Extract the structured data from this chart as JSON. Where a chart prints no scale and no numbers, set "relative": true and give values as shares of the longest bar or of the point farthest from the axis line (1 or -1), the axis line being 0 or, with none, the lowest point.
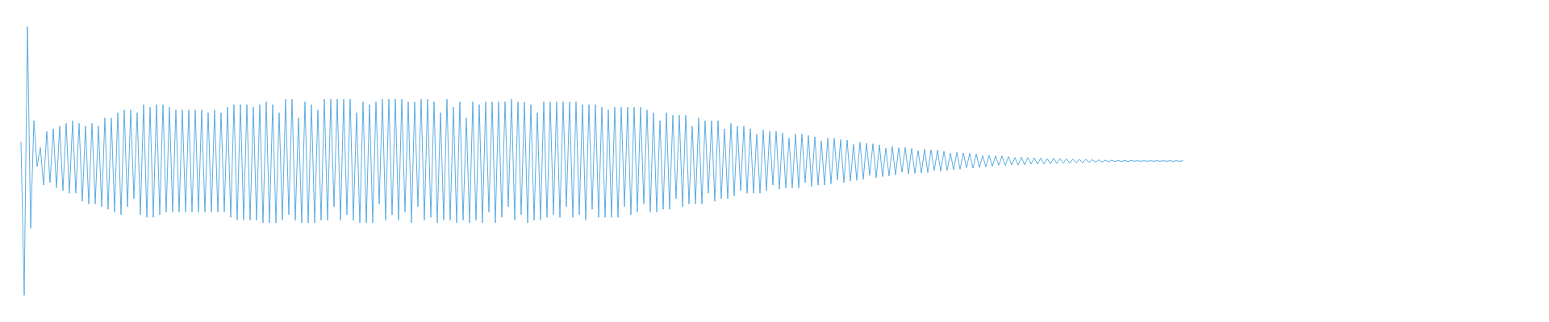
{
  "chart_data": {
    "type": "line",
    "relative": true,
    "color": "#5dade2",
    "marker": "none",
    "tick_labels": false,
    "categories": [
      null,
      null,
      null,
      null,
      null,
      null,
      null,
      null,
      null,
      null,
      null,
      null,
      null,
      null,
      null,
      null,
      null,
      null,
      null,
      null,
      null,
      null,
      null,
      null,
      null,
      null,
      null,
      null,
      null,
      null,
      null,
      null,
      null,
      null,
      null,
      null,
      null,
      null,
      null,
      null,
      null,
      null,
      null,
      null,
      null,
      null,
      null,
      null,
      null,
      null,
      null,
      null,
      null,
      null,
      null,
      null,
      null,
      null,
      null,
      null,
      null,
      null,
      null,
      null,
      null,
      null,
      null,
      null,
      null,
      null,
      null,
      null,
      null,
      null,
      null,
      null,
      null,
      null,
      null,
      null,
      null,
      null,
      null,
      null,
      null,
      null,
      null,
      null,
      null,
      null,
      null,
      null,
      null,
      null,
      null,
      null,
      null,
      null,
      null,
      null,
      null,
      null,
      null,
      null,
      null,
      null,
      null,
      null,
      null,
      null,
      null,
      null,
      null,
      null,
      null,
      null,
      null,
      null,
      null,
      null,
      null,
      null,
      null,
      null,
      null,
      null,
      null,
      null,
      null,
      null,
      null,
      null,
      null,
      null,
      null,
      null,
      null,
      null,
      null,
      null,
      null,
      null,
      null,
      null,
      null,
      null,
      null,
      null,
      null,
      null,
      null,
      null,
      null,
      null,
      null,
      null,
      null,
      null,
      null,
      null,
      null,
      null,
      null,
      null,
      null,
      null,
      null,
      null,
      null,
      null,
      null,
      null,
      null,
      null,
      null,
      null,
      null,
      null,
      null,
      null,
      null,
      null,
      null,
      null,
      null,
      null,
      null,
      null,
      null,
      null,
      null,
      null,
      null,
      null,
      null,
      null,
      null,
      null,
      null,
      null,
      null,
      null,
      null,
      null,
      null,
      null,
      null,
      null,
      null,
      null,
      null,
      null,
      null,
      null,
      null,
      null,
      null,
      null,
      null,
      null,
      null,
      null,
      null,
      null,
      null,
      null,
      null,
      null,
      null,
      null,
      null,
      null,
      null,
      null,
      null,
      null,
      null,
      null,
      null,
      null,
      null,
      null,
      null,
      null,
      null,
      null,
      null,
      null,
      null,
      null,
      null,
      null,
      null,
      null,
      null,
      null,
      null,
      null,
      null,
      null,
      null,
      null,
      null,
      null,
      null,
      null,
      null,
      null,
      null,
      null,
      null,
      null,
      null,
      null,
      null,
      null,
      null,
      null,
      null,
      null,
      null,
      null,
      null,
      null,
      null,
      null,
      null,
      null,
      null,
      null,
      null,
      null,
      null,
      null,
      null,
      null,
      null,
      null,
      null,
      null,
      null,
      null,
      null,
      null,
      null,
      null,
      null,
      null,
      null,
      null,
      null,
      null,
      null,
      null,
      null,
      null,
      null,
      null,
      null,
      null,
      null,
      null,
      null,
      null,
      null,
      null,
      null,
      null,
      null,
      null,
      null,
      null,
      null,
      null,
      null,
      null,
      null,
      null,
      null,
      null,
      null,
      null,
      null,
      null,
      null,
      null,
      null,
      null,
      null,
      null,
      null,
      null,
      null,
      null,
      null,
      null,
      null,
      null,
      null,
      null,
      null
    ],
    "values": [
      0.57,
      0.0,
      1.0,
      0.25,
      0.65,
      0.48,
      0.55,
      0.41,
      0.61,
      0.42,
      0.62,
      0.4,
      0.63,
      0.39,
      0.64,
      0.38,
      0.65,
      0.38,
      0.64,
      0.35,
      0.63,
      0.34,
      0.64,
      0.34,
      0.63,
      0.33,
      0.66,
      0.32,
      0.66,
      0.31,
      0.68,
      0.3,
      0.69,
      0.33,
      0.69,
      0.36,
      0.68,
      0.3,
      0.71,
      0.29,
      0.7,
      0.29,
      0.71,
      0.3,
      0.71,
      0.31,
      0.7,
      0.31,
      0.69,
      0.31,
      0.69,
      0.31,
      0.69,
      0.31,
      0.69,
      0.31,
      0.69,
      0.31,
      0.68,
      0.31,
      0.69,
      0.31,
      0.68,
      0.31,
      0.7,
      0.29,
      0.71,
      0.28,
      0.71,
      0.28,
      0.71,
      0.28,
      0.7,
      0.28,
      0.71,
      0.27,
      0.72,
      0.27,
      0.71,
      0.27,
      0.68,
      0.28,
      0.73,
      0.3,
      0.73,
      0.28,
      0.66,
      0.27,
      0.72,
      0.27,
      0.71,
      0.27,
      0.69,
      0.28,
      0.73,
      0.28,
      0.73,
      0.33,
      0.73,
      0.28,
      0.73,
      0.3,
      0.73,
      0.28,
      0.68,
      0.27,
      0.72,
      0.27,
      0.71,
      0.27,
      0.72,
      0.34,
      0.73,
      0.28,
      0.73,
      0.3,
      0.73,
      0.28,
      0.73,
      0.31,
      0.72,
      0.27,
      0.72,
      0.33,
      0.73,
      0.28,
      0.73,
      0.29,
      0.72,
      0.27,
      0.68,
      0.28,
      0.73,
      0.28,
      0.7,
      0.27,
      0.72,
      0.28,
      0.66,
      0.27,
      0.72,
      0.28,
      0.71,
      0.27,
      0.72,
      0.31,
      0.72,
      0.27,
      0.72,
      0.29,
      0.72,
      0.33,
      0.73,
      0.28,
      0.72,
      0.3,
      0.72,
      0.27,
      0.71,
      0.28,
      0.68,
      0.28,
      0.72,
      0.29,
      0.72,
      0.3,
      0.72,
      0.29,
      0.72,
      0.33,
      0.72,
      0.29,
      0.72,
      0.3,
      0.71,
      0.28,
      0.71,
      0.32,
      0.71,
      0.29,
      0.7,
      0.29,
      0.69,
      0.29,
      0.7,
      0.29,
      0.7,
      0.33,
      0.7,
      0.3,
      0.7,
      0.31,
      0.7,
      0.34,
      0.69,
      0.31,
      0.68,
      0.31,
      0.65,
      0.32,
      0.68,
      0.32,
      0.67,
      0.36,
      0.67,
      0.33,
      0.67,
      0.34,
      0.63,
      0.34,
      0.66,
      0.34,
      0.65,
      0.38,
      0.65,
      0.35,
      0.65,
      0.36,
      0.62,
      0.36,
      0.64,
      0.37,
      0.63,
      0.39,
      0.63,
      0.38,
      0.62,
      0.38,
      0.6,
      0.38,
      0.615,
      0.39,
      0.61,
      0.41,
      0.61,
      0.395,
      0.605,
      0.4,
      0.585,
      0.4,
      0.6,
      0.4,
      0.6,
      0.42,
      0.595,
      0.405,
      0.59,
      0.41,
      0.575,
      0.41,
      0.585,
      0.415,
      0.585,
      0.43,
      0.58,
      0.42,
      0.578,
      0.425,
      0.562,
      0.428,
      0.57,
      0.432,
      0.566,
      0.446,
      0.564,
      0.438,
      0.56,
      0.442,
      0.548,
      0.444,
      0.554,
      0.448,
      0.55,
      0.458,
      0.55,
      0.452,
      0.547,
      0.454,
      0.538,
      0.455,
      0.544,
      0.457,
      0.542,
      0.465,
      0.54,
      0.462,
      0.536,
      0.465,
      0.529,
      0.467,
      0.532,
      0.469,
      0.53,
      0.475,
      0.528,
      0.473,
      0.526,
      0.476,
      0.52,
      0.478,
      0.521,
      0.48,
      0.519,
      0.484,
      0.518,
      0.483,
      0.516,
      0.485,
      0.513,
      0.485,
      0.514,
      0.486,
      0.513,
      0.489,
      0.512,
      0.488,
      0.511,
      0.489,
      0.509,
      0.49,
      0.51,
      0.491,
      0.509,
      0.492,
      0.508,
      0.492,
      0.507,
      0.493,
      0.506,
      0.494,
      0.506,
      0.495,
      0.505,
      0.496,
      0.504,
      0.496,
      0.503,
      0.497,
      0.503,
      0.498,
      0.502,
      0.498,
      0.502,
      0.498,
      0.502,
      0.499,
      0.501,
      0.499,
      0.501,
      0.499,
      0.501,
      0.499,
      0.501,
      0.499,
      0.501,
      0.499,
      0.501,
      0.499,
      0.501,
      0.499,
      0.501
    ]
  }
}
